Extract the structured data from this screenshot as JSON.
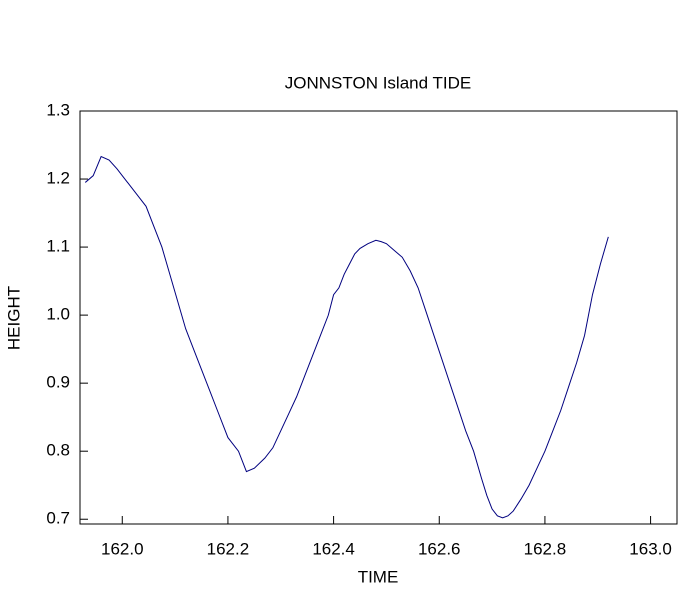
{
  "chart_data": {
    "type": "line",
    "title": "JONNSTON Island TIDE",
    "xlabel": "TIME",
    "ylabel": "HEIGHT",
    "x": [
      161.93,
      161.945,
      161.96,
      161.975,
      161.99,
      162.0,
      162.015,
      162.03,
      162.045,
      162.06,
      162.075,
      162.09,
      162.105,
      162.12,
      162.135,
      162.15,
      162.165,
      162.18,
      162.2,
      162.22,
      162.235,
      162.25,
      162.27,
      162.285,
      162.3,
      162.315,
      162.33,
      162.345,
      162.36,
      162.375,
      162.39,
      162.4,
      162.41,
      162.42,
      162.43,
      162.44,
      162.45,
      162.465,
      162.48,
      162.49,
      162.5,
      162.515,
      162.53,
      162.545,
      162.56,
      162.575,
      162.59,
      162.605,
      162.62,
      162.635,
      162.65,
      162.665,
      162.68,
      162.69,
      162.7,
      162.71,
      162.72,
      162.73,
      162.74,
      162.755,
      162.77,
      162.785,
      162.8,
      162.815,
      162.83,
      162.845,
      162.86,
      162.875,
      162.89,
      162.905,
      162.92
    ],
    "series": [
      {
        "name": "HEIGHT",
        "color": "#00007f",
        "values": [
          1.195,
          1.205,
          1.233,
          1.228,
          1.215,
          1.205,
          1.19,
          1.175,
          1.16,
          1.13,
          1.1,
          1.06,
          1.02,
          0.98,
          0.95,
          0.92,
          0.89,
          0.86,
          0.82,
          0.8,
          0.77,
          0.775,
          0.79,
          0.805,
          0.83,
          0.855,
          0.88,
          0.91,
          0.94,
          0.97,
          1.0,
          1.03,
          1.04,
          1.06,
          1.075,
          1.09,
          1.098,
          1.105,
          1.11,
          1.108,
          1.105,
          1.095,
          1.085,
          1.065,
          1.04,
          1.005,
          0.97,
          0.935,
          0.9,
          0.865,
          0.83,
          0.8,
          0.76,
          0.735,
          0.715,
          0.705,
          0.702,
          0.705,
          0.712,
          0.73,
          0.75,
          0.775,
          0.8,
          0.83,
          0.86,
          0.895,
          0.93,
          0.97,
          1.03,
          1.075,
          1.115
        ]
      }
    ],
    "xlim": [
      161.92,
      163.05
    ],
    "ylim": [
      0.693,
      1.3
    ],
    "xticks": [
      {
        "value": 162.0,
        "label": "162.0"
      },
      162.2,
      162.4,
      162.6,
      162.8,
      {
        "value": 163.0,
        "label": "163.0"
      }
    ],
    "yticks": [
      0.7,
      0.8,
      0.9,
      {
        "value": 1.0,
        "label": "1.0"
      },
      1.1,
      1.2,
      1.3
    ]
  }
}
